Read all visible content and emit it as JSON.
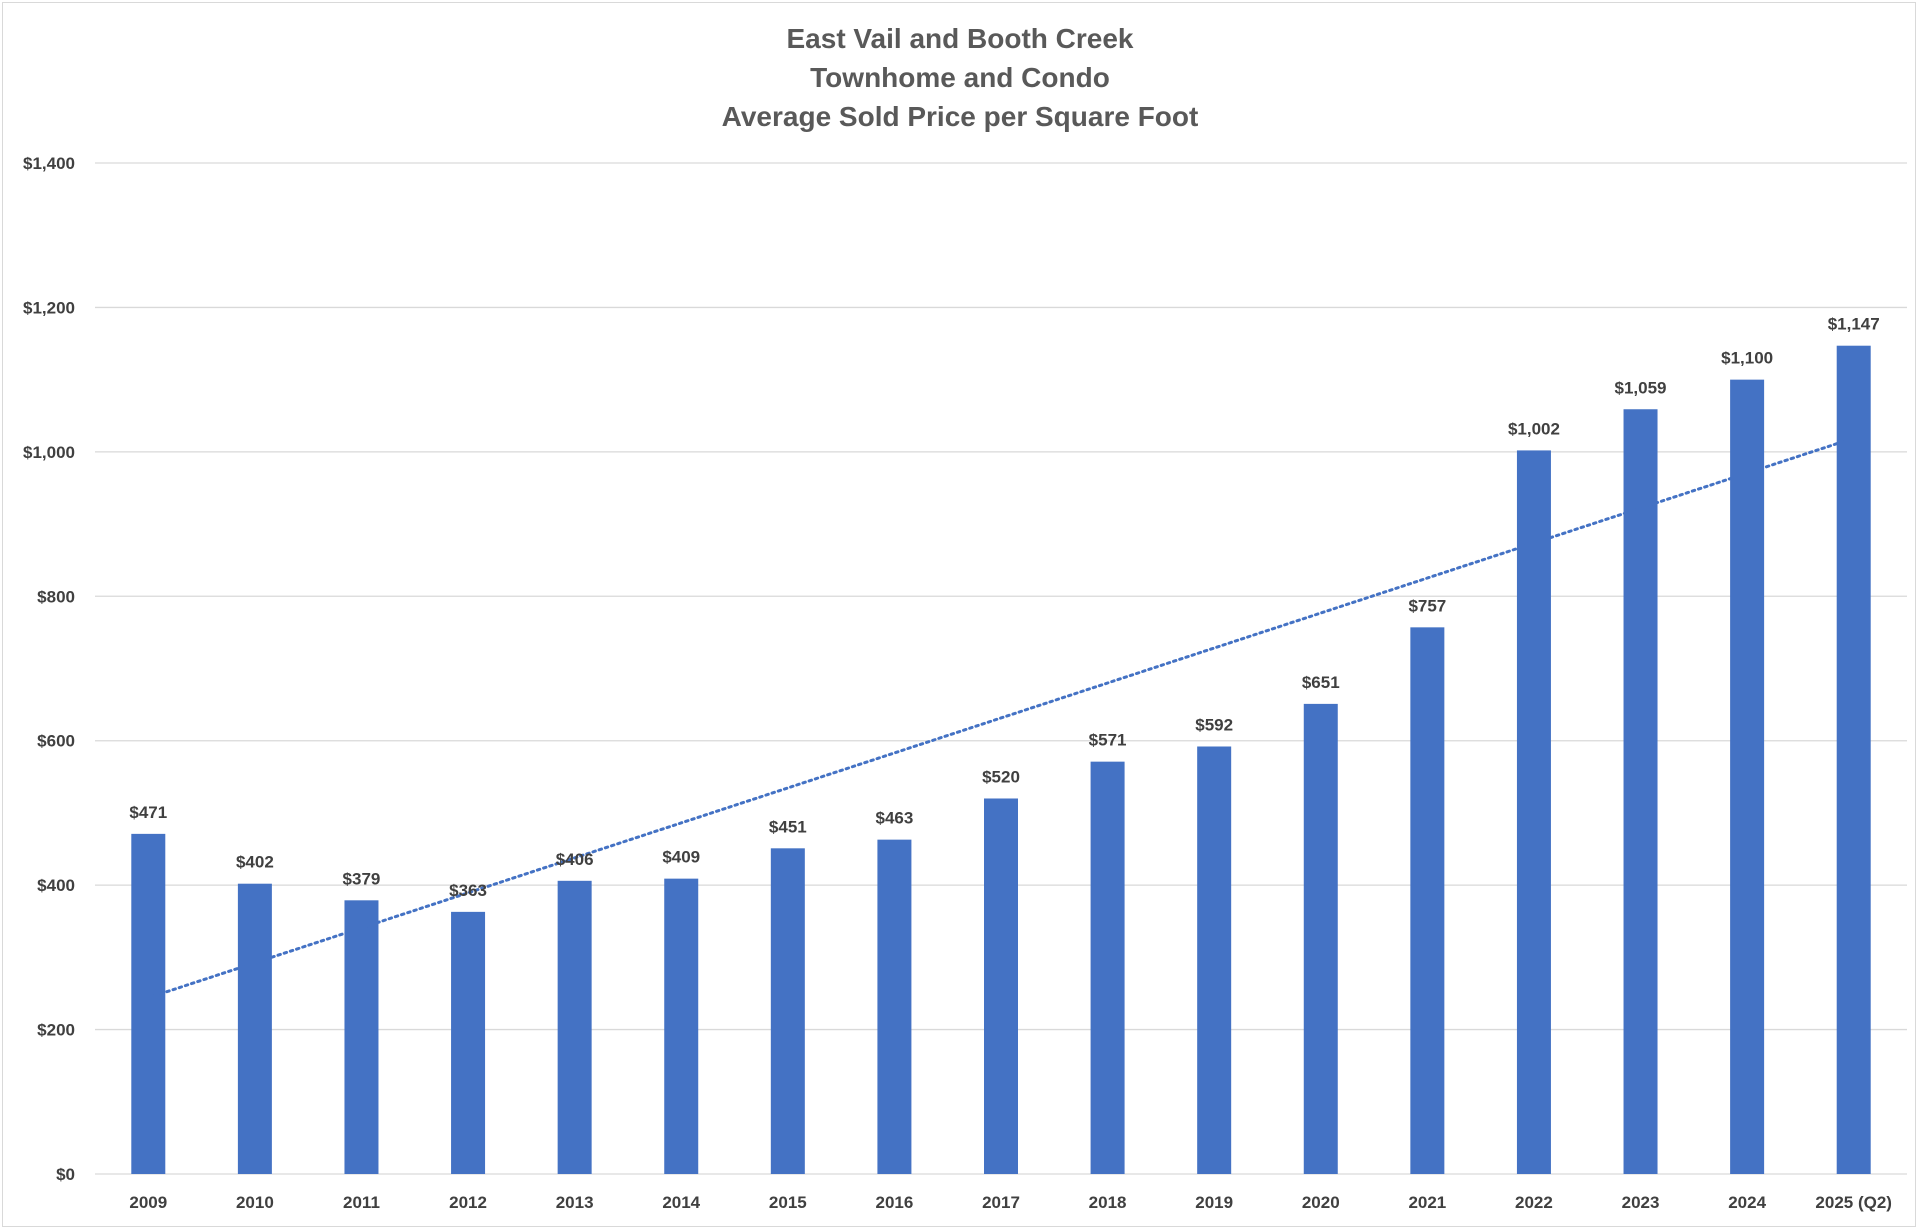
{
  "chart_data": {
    "type": "bar",
    "title": [
      "East Vail and Booth Creek",
      "Townhome and Condo",
      "Average Sold Price per Square Foot"
    ],
    "xlabel": "",
    "ylabel": "",
    "categories": [
      "2009",
      "2010",
      "2011",
      "2012",
      "2013",
      "2014",
      "2015",
      "2016",
      "2017",
      "2018",
      "2019",
      "2020",
      "2021",
      "2022",
      "2023",
      "2024",
      "2025 (Q2)"
    ],
    "series": [
      {
        "values": [
          471,
          402,
          379,
          363,
          406,
          409,
          451,
          463,
          520,
          571,
          592,
          651,
          757,
          1002,
          1059,
          1100,
          1147
        ],
        "data_labels": [
          "$471",
          "$402",
          "$379",
          "$363",
          "$406",
          "$409",
          "$451",
          "$463",
          "$520",
          "$571",
          "$592",
          "$651",
          "$757",
          "$1,002",
          "$1,059",
          "$1,100",
          "$1,147"
        ]
      }
    ],
    "trendline": {
      "type": "linear",
      "style": "dotted",
      "start_value": 244,
      "end_value": 1019
    },
    "ylim": [
      0,
      1400
    ],
    "yticks": [
      0,
      200,
      400,
      600,
      800,
      1000,
      1200,
      1400
    ],
    "ytick_labels": [
      "$0",
      "$200",
      "$400",
      "$600",
      "$800",
      "$1,000",
      "$1,200",
      "$1,400"
    ],
    "grid": true,
    "legend": "none",
    "colors": {
      "bar": "#4472C4",
      "trendline": "#4472C4",
      "gridline": "#D9D9D9",
      "title": "#595959",
      "labels": "#404040"
    }
  }
}
